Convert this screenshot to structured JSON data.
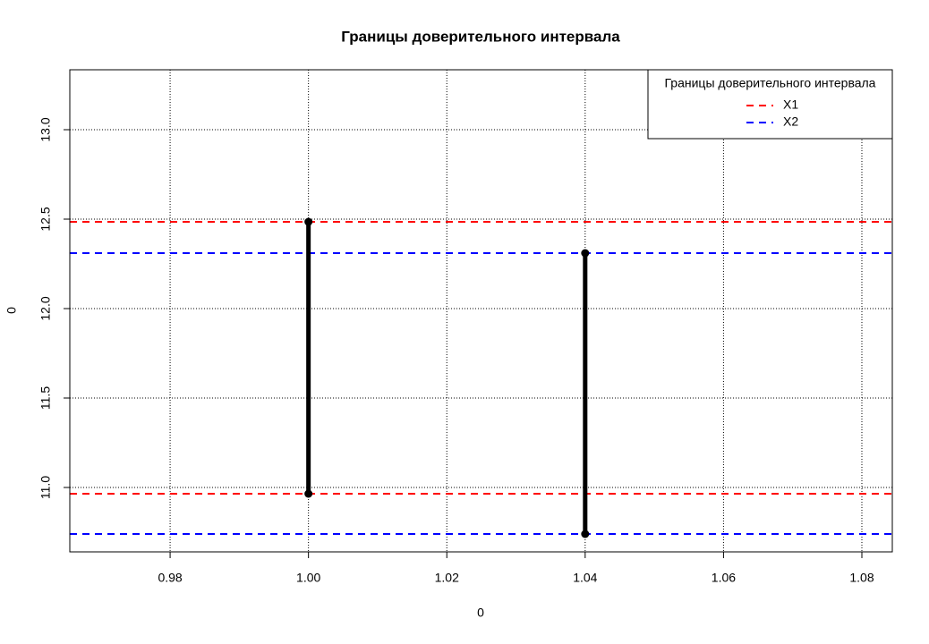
{
  "chart_data": {
    "type": "interval",
    "title": "Границы доверительного интервала",
    "x_label": "0",
    "y_label": "0",
    "xlim": [
      0.9655,
      1.0844
    ],
    "ylim": [
      10.64,
      13.335
    ],
    "xticks": [
      0.98,
      {
        "value": 1.0,
        "label": "1.00"
      },
      1.02,
      1.04,
      1.06,
      1.08
    ],
    "yticks": [
      {
        "value": 11.0,
        "label": "11.0"
      },
      11.5,
      {
        "value": 12.0,
        "label": "12.0"
      },
      12.5,
      {
        "value": 13.0,
        "label": "13.0"
      }
    ],
    "grid": true,
    "legend_title": "Границы доверительного интервала",
    "legend_position": "top-right",
    "segment_color": "#000000",
    "series": [
      {
        "name": "X1",
        "color": "#ff0000",
        "x": 1.0,
        "values": [
          10.965,
          12.485
        ]
      },
      {
        "name": "X2",
        "color": "#0000ff",
        "x": 1.04,
        "values": [
          10.74,
          12.31
        ]
      }
    ]
  }
}
